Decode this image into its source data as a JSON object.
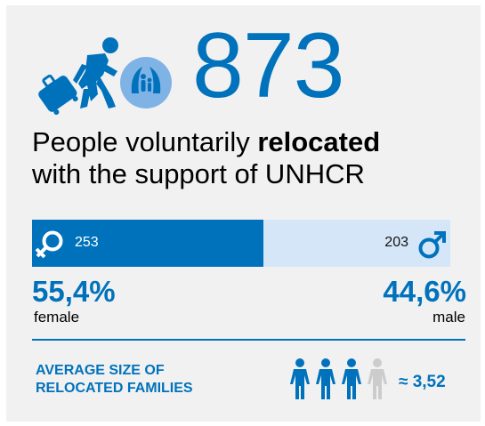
{
  "hero": {
    "number": "873",
    "headline_part1": "People voluntarily ",
    "headline_bold": "relocated",
    "headline_part2": "with the support of UNHCR"
  },
  "gender": {
    "female_count": "253",
    "male_count": "203",
    "female_fraction": 0.554,
    "female_pct": "55,4%",
    "male_pct": "44,6%",
    "female_label": "female",
    "male_label": "male"
  },
  "families": {
    "label_line1": "AVERAGE SIZE OF",
    "label_line2": "RELOCATED FAMILIES",
    "value": "≈ 3,52"
  },
  "icons": [
    "traveler-with-luggage-icon",
    "unhcr-protection-icon",
    "female-symbol-icon",
    "male-symbol-icon",
    "person-icon"
  ],
  "colors": {
    "accent": "#0072bc",
    "light_accent": "#d5e6f8",
    "background": "#f1f1f1",
    "inactive_person": "#cccccc"
  }
}
